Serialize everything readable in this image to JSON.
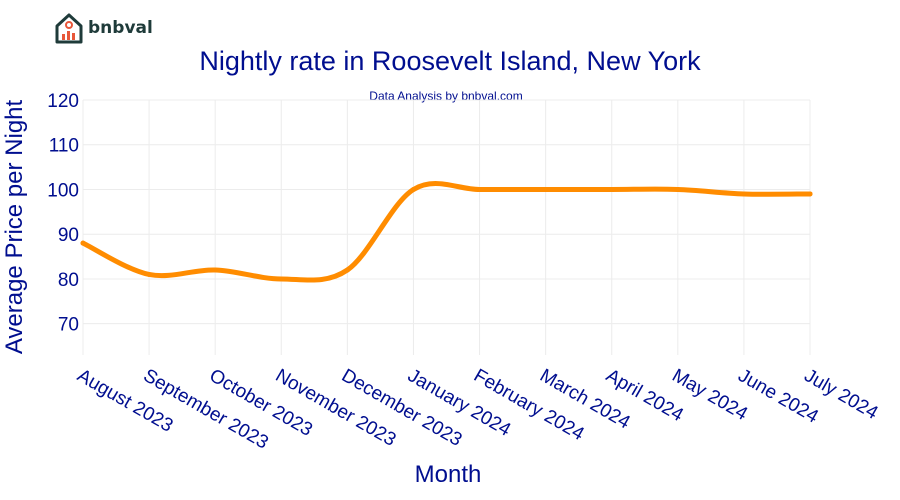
{
  "brand": {
    "name": "bnbval",
    "logo_icon": "house-chart-icon"
  },
  "chart_data": {
    "type": "line",
    "title": "Nightly rate in Roosevelt Island, New York",
    "subtitle": "Data Analysis by bnbval.com",
    "xlabel": "Month",
    "ylabel": "Average Price per Night",
    "categories": [
      "August 2023",
      "September 2023",
      "October 2023",
      "November 2023",
      "December 2023",
      "January 2024",
      "February 2024",
      "March 2024",
      "April 2024",
      "May 2024",
      "June 2024",
      "July 2024"
    ],
    "series": [
      {
        "values": [
          88,
          81,
          82,
          80,
          82,
          100,
          100,
          100,
          100,
          100,
          99,
          99
        ]
      }
    ],
    "yticks": [
      70,
      80,
      90,
      100,
      110,
      120
    ],
    "ylim": [
      63,
      120
    ],
    "grid": true,
    "colors": {
      "line": "#ff8c00",
      "text": "#000e8f",
      "grid": "#ececec",
      "logo": "#1f3b3a",
      "logo_accent": "#e8573a"
    }
  }
}
